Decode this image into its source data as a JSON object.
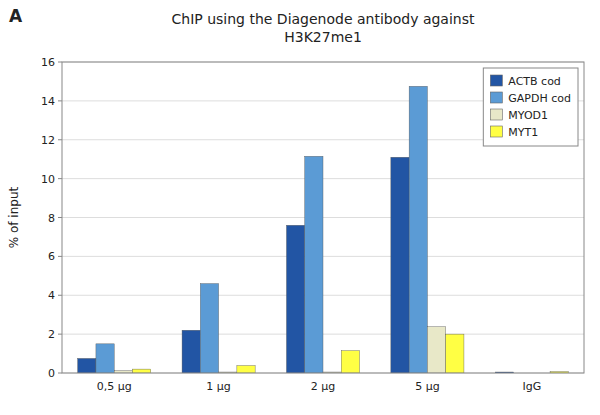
{
  "chart_data": {
    "type": "bar",
    "title": "ChIP using the Diagenode antibody against\nH3K27me1",
    "y_label": "% of input",
    "annotations": [
      {
        "text": "A",
        "color": "#1A237E"
      }
    ],
    "categories": [
      "0,5 μg",
      "1 μg",
      "2 μg",
      "5 μg",
      "IgG"
    ],
    "series": [
      {
        "name": "ACTB cod",
        "color": "#2255A4",
        "values": [
          0.75,
          2.2,
          7.6,
          11.1,
          0.05
        ]
      },
      {
        "name": "GAPDH cod",
        "color": "#5B9BD5",
        "values": [
          1.5,
          4.6,
          11.15,
          14.75,
          0.0
        ]
      },
      {
        "name": "MYOD1",
        "color": "#E8E8C8",
        "values": [
          0.12,
          0.05,
          0.05,
          2.38,
          0.0
        ]
      },
      {
        "name": "MYT1",
        "color": "#FFFF44",
        "values": [
          0.2,
          0.38,
          1.15,
          2.0,
          0.07
        ]
      }
    ],
    "ylim": [
      0,
      16
    ],
    "yticks": [
      0,
      2,
      4,
      6,
      8,
      10,
      12,
      14,
      16
    ],
    "grid": true,
    "legend": "upper right"
  }
}
